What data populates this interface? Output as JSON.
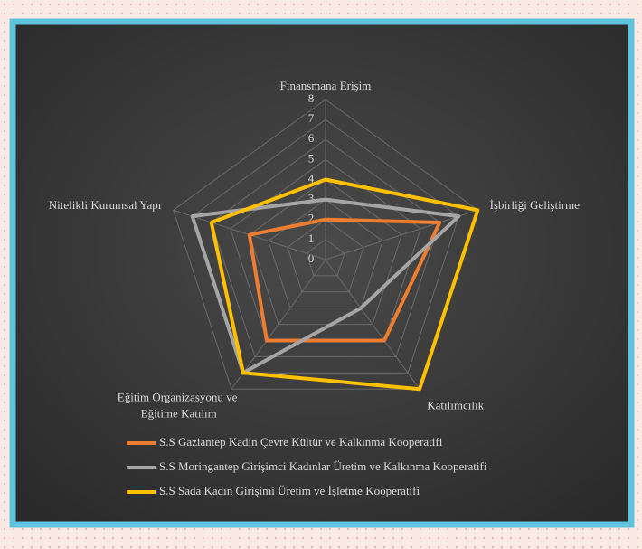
{
  "chart_data": {
    "type": "radar",
    "categories": [
      "Finansmana Erişim",
      "İşbirliği Geliştirme",
      "Katılımcılık",
      "Eğitim Organizasyonu ve Eğitime Katılım",
      "Nitelikli Kurumsal Yapı"
    ],
    "series": [
      {
        "name": "S.S Gaziantep Kadın Çevre Kültür ve Kalkınma Kooperatifi",
        "color": "#ED7D31",
        "values": [
          2,
          6,
          5,
          5,
          4
        ]
      },
      {
        "name": "S.S Moringantep Girişimci Kadınlar Üretim ve Kalkınma Kooperatifi",
        "color": "#A5A5A5",
        "values": [
          3,
          7,
          3,
          7,
          7
        ]
      },
      {
        "name": "S.S Sada Kadın Girişimi Üretim ve İşletme Kooperatifi",
        "color": "#FFC000",
        "values": [
          4,
          8,
          8,
          7,
          6
        ]
      }
    ],
    "ylim": [
      0,
      8
    ],
    "yticks": [
      0,
      1,
      2,
      3,
      4,
      5,
      6,
      7,
      8
    ],
    "grid": true,
    "legend": "bottom"
  }
}
